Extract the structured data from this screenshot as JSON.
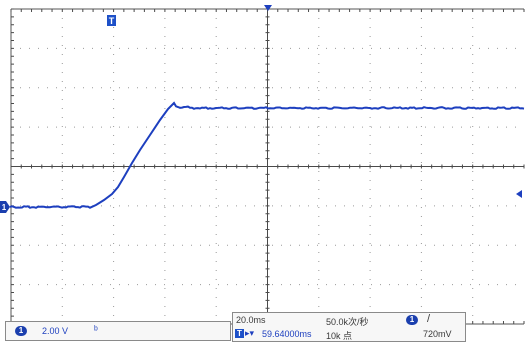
{
  "channel": {
    "number": "1",
    "scale": "2.00 V",
    "coupling_icon": "bandwidth-limit-icon",
    "color": "#1d3fbf"
  },
  "timebase": {
    "scale": "20.0ms",
    "sample_rate": "50.0k次/秒",
    "record_length": "10k 点"
  },
  "trigger": {
    "marker": "T",
    "position": "59.64000ms",
    "source": "1",
    "slope_icon": "rising-edge-icon",
    "level": "720mV"
  },
  "colors": {
    "trace": "#1d3fbf",
    "grid": "#8c8c8c",
    "background": "#ffffff"
  }
}
